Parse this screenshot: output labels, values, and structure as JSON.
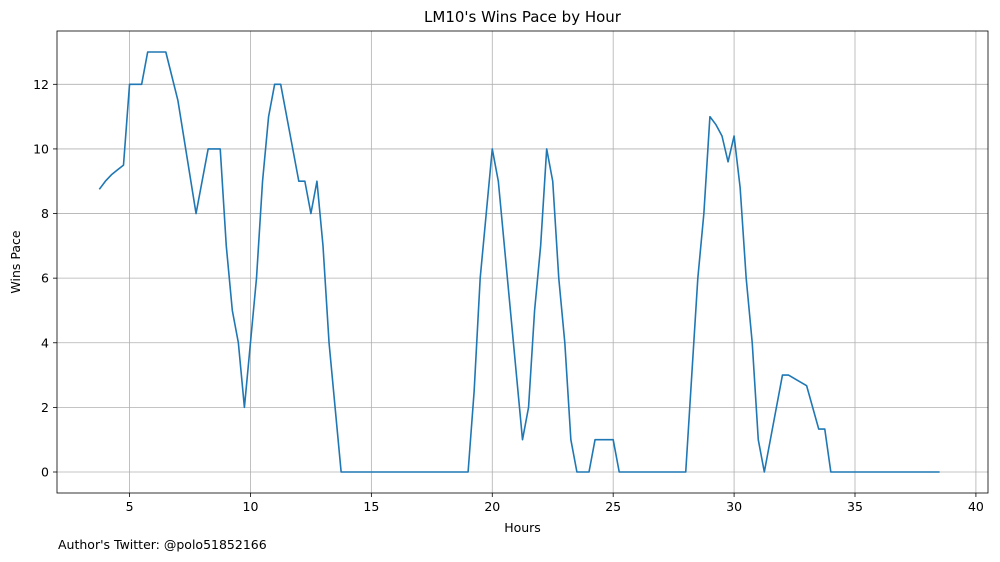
{
  "chart_data": {
    "type": "line",
    "title": "LM10's Wins Pace by Hour",
    "xlabel": "Hours",
    "ylabel": "Wins Pace",
    "xlim": [
      2.0,
      40.5
    ],
    "ylim": [
      -0.65,
      13.65
    ],
    "xticks": [
      5,
      10,
      15,
      20,
      25,
      30,
      35,
      40
    ],
    "yticks": [
      0,
      2,
      4,
      6,
      8,
      10,
      12
    ],
    "grid": true,
    "series": [
      {
        "color": "#1f77b4",
        "points": [
          [
            3.75,
            8.75
          ],
          [
            4.0,
            9.0
          ],
          [
            4.25,
            9.2
          ],
          [
            4.5,
            9.35
          ],
          [
            4.75,
            9.5
          ],
          [
            5.0,
            12.0
          ],
          [
            5.25,
            12.0
          ],
          [
            5.5,
            12.0
          ],
          [
            5.75,
            13.0
          ],
          [
            6.0,
            13.0
          ],
          [
            6.25,
            13.0
          ],
          [
            6.5,
            13.0
          ],
          [
            7.0,
            11.5
          ],
          [
            7.75,
            8.0
          ],
          [
            8.25,
            10.0
          ],
          [
            8.75,
            10.0
          ],
          [
            9.0,
            7.0
          ],
          [
            9.25,
            5.0
          ],
          [
            9.5,
            4.0
          ],
          [
            9.75,
            2.0
          ],
          [
            10.0,
            4.0
          ],
          [
            10.25,
            6.0
          ],
          [
            10.5,
            9.0
          ],
          [
            10.75,
            11.0
          ],
          [
            11.0,
            12.0
          ],
          [
            11.25,
            12.0
          ],
          [
            12.0,
            9.0
          ],
          [
            12.25,
            9.0
          ],
          [
            12.5,
            8.0
          ],
          [
            12.75,
            9.0
          ],
          [
            13.0,
            7.0
          ],
          [
            13.25,
            4.0
          ],
          [
            13.5,
            2.0
          ],
          [
            13.75,
            0.0
          ],
          [
            19.0,
            0.0
          ],
          [
            19.25,
            2.5
          ],
          [
            19.5,
            6.0
          ],
          [
            19.75,
            8.0
          ],
          [
            20.0,
            10.0
          ],
          [
            20.25,
            9.0
          ],
          [
            20.5,
            7.0
          ],
          [
            21.25,
            1.0
          ],
          [
            21.5,
            2.0
          ],
          [
            21.75,
            5.0
          ],
          [
            22.0,
            7.0
          ],
          [
            22.25,
            10.0
          ],
          [
            22.5,
            9.0
          ],
          [
            22.75,
            6.0
          ],
          [
            23.0,
            4.0
          ],
          [
            23.25,
            1.0
          ],
          [
            23.5,
            0.0
          ],
          [
            24.0,
            0.0
          ],
          [
            24.25,
            1.0
          ],
          [
            25.0,
            1.0
          ],
          [
            25.25,
            0.0
          ],
          [
            28.0,
            0.0
          ],
          [
            28.25,
            3.0
          ],
          [
            28.5,
            6.0
          ],
          [
            28.75,
            8.0
          ],
          [
            29.0,
            11.0
          ],
          [
            29.25,
            10.75
          ],
          [
            29.5,
            10.4
          ],
          [
            29.75,
            9.6
          ],
          [
            30.0,
            10.4
          ],
          [
            30.25,
            8.8
          ],
          [
            30.5,
            6.0
          ],
          [
            30.75,
            4.0
          ],
          [
            31.0,
            1.0
          ],
          [
            31.25,
            0.0
          ],
          [
            32.0,
            3.0
          ],
          [
            32.25,
            3.0
          ],
          [
            33.0,
            2.67
          ],
          [
            33.5,
            1.33
          ],
          [
            33.75,
            1.33
          ],
          [
            34.0,
            0.0
          ],
          [
            38.5,
            0.0
          ]
        ]
      }
    ]
  },
  "footer": {
    "text": "Author's Twitter: @polo51852166"
  }
}
